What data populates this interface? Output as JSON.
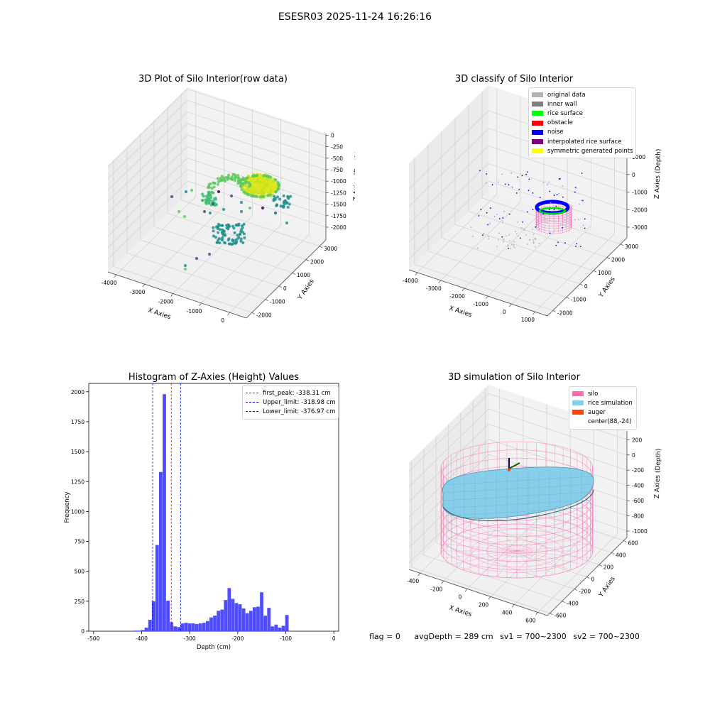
{
  "figure": {
    "suptitle": "ESESR03 2025-11-24 16:26:16"
  },
  "panels": {
    "raw": {
      "title": "3D Plot of Silo Interior(row data)",
      "xlabel": "X Axies",
      "ylabel": "Y Axies",
      "zlabel": "Z Axies (Depth)",
      "xticks": [
        "-4000",
        "-3000",
        "-2000",
        "-1000",
        "0"
      ],
      "yticks": [
        "-2000",
        "-1000",
        "0",
        "1000",
        "2000",
        "3000"
      ],
      "zticks": [
        "0",
        "-250",
        "-500",
        "-750",
        "-1000",
        "-1250",
        "-1500",
        "-1750",
        "-2000"
      ]
    },
    "classify": {
      "title": "3D classify of Silo Interior",
      "xlabel": "X Axies",
      "ylabel": "Y Axies",
      "zlabel": "Z Axies (Depth)",
      "xticks": [
        "-4000",
        "-3000",
        "-2000",
        "-1000",
        "0",
        "1000"
      ],
      "yticks": [
        "-2000",
        "-1000",
        "0",
        "1000",
        "2000",
        "3000"
      ],
      "zticks": [
        "1000",
        "0",
        "-1000",
        "-2000",
        "-3000"
      ],
      "legend": [
        {
          "label": "original data",
          "color": "#b3b3b3"
        },
        {
          "label": "inner wall",
          "color": "#808080"
        },
        {
          "label": "rice surface",
          "color": "#00ff00"
        },
        {
          "label": "obstacle",
          "color": "#ff0000"
        },
        {
          "label": "noise",
          "color": "#0000ff"
        },
        {
          "label": "interpolated rice surface",
          "color": "#800080"
        },
        {
          "label": "symmetric generated points",
          "color": "#ffff00"
        }
      ]
    },
    "simulation": {
      "title": "3D simulation of Silo Interior",
      "xlabel": "X Axies",
      "ylabel": "Y Axies",
      "zlabel": "Z Axies (Depth)",
      "xticks": [
        "-400",
        "-200",
        "0",
        "200",
        "400",
        "600"
      ],
      "yticks": [
        "-600",
        "-400",
        "-200",
        "0",
        "200",
        "400",
        "600"
      ],
      "zticks": [
        "200",
        "0",
        "-200",
        "-400",
        "-600",
        "-800",
        "-1000"
      ],
      "legend": [
        {
          "label": "silo",
          "color": "#ff69b4"
        },
        {
          "label": "rice simulation",
          "color": "#87ceeb"
        },
        {
          "label": "auger",
          "color": "#ff4500"
        },
        {
          "label": "center(88,-24)",
          "color": ""
        }
      ]
    }
  },
  "status": {
    "flag": "flag = 0",
    "avg_depth": "avgDepth = 289 cm",
    "sv1": "sv1 = 700~2300",
    "sv2": "sv2 = 700~2300"
  },
  "chart_data": [
    {
      "type": "scatter",
      "title": "3D Plot of Silo Interior(row data)",
      "xlabel": "X Axies",
      "ylabel": "Y Axies",
      "zlabel": "Z Axies (Depth)",
      "xlim": [
        -4300,
        500
      ],
      "ylim": [
        -2500,
        3500
      ],
      "zlim": [
        -2100,
        100
      ],
      "colormap": "viridis (by depth)"
    },
    {
      "type": "scatter",
      "title": "3D classify of Silo Interior",
      "xlabel": "X Axies",
      "ylabel": "Y Axies",
      "zlabel": "Z Axies (Depth)",
      "xlim": [
        -4300,
        1100
      ],
      "ylim": [
        -2500,
        3100
      ],
      "zlim": [
        -3600,
        1100
      ],
      "series": [
        {
          "name": "original data",
          "color": "#b3b3b3"
        },
        {
          "name": "inner wall",
          "color": "#808080"
        },
        {
          "name": "rice surface",
          "color": "#00ff00"
        },
        {
          "name": "obstacle",
          "color": "#ff0000"
        },
        {
          "name": "noise",
          "color": "#0000ff"
        },
        {
          "name": "interpolated rice surface",
          "color": "#800080"
        },
        {
          "name": "symmetric generated points",
          "color": "#ffff00"
        }
      ]
    },
    {
      "type": "bar",
      "title": "Histogram of Z-Axies (Height) Values",
      "xlabel": "Depth (cm)",
      "ylabel": "Frequency",
      "xlim": [
        -510,
        10
      ],
      "ylim": [
        0,
        2070
      ],
      "xticks": [
        -500,
        -400,
        -300,
        -200,
        -100,
        0
      ],
      "yticks": [
        0,
        250,
        500,
        750,
        1000,
        1250,
        1500,
        1750,
        2000
      ],
      "bar_color": "#4d4dff",
      "bin_width": 7.5,
      "bins": [
        {
          "x": -412.5,
          "y": 5
        },
        {
          "x": -405,
          "y": 5
        },
        {
          "x": -397.5,
          "y": 10
        },
        {
          "x": -390,
          "y": 30
        },
        {
          "x": -382.5,
          "y": 95
        },
        {
          "x": -375,
          "y": 250
        },
        {
          "x": -367.5,
          "y": 720
        },
        {
          "x": -360,
          "y": 1330
        },
        {
          "x": -352.5,
          "y": 1980
        },
        {
          "x": -345,
          "y": 255
        },
        {
          "x": -337.5,
          "y": 75
        },
        {
          "x": -330,
          "y": 40
        },
        {
          "x": -322.5,
          "y": 35
        },
        {
          "x": -315,
          "y": 65
        },
        {
          "x": -307.5,
          "y": 70
        },
        {
          "x": -300,
          "y": 65
        },
        {
          "x": -292.5,
          "y": 65
        },
        {
          "x": -285,
          "y": 60
        },
        {
          "x": -277.5,
          "y": 65
        },
        {
          "x": -270,
          "y": 70
        },
        {
          "x": -262.5,
          "y": 85
        },
        {
          "x": -255,
          "y": 115
        },
        {
          "x": -247.5,
          "y": 130
        },
        {
          "x": -240,
          "y": 170
        },
        {
          "x": -232.5,
          "y": 180
        },
        {
          "x": -225,
          "y": 260
        },
        {
          "x": -217.5,
          "y": 360
        },
        {
          "x": -210,
          "y": 270
        },
        {
          "x": -202.5,
          "y": 235
        },
        {
          "x": -195,
          "y": 225
        },
        {
          "x": -187.5,
          "y": 190
        },
        {
          "x": -180,
          "y": 150
        },
        {
          "x": -172.5,
          "y": 170
        },
        {
          "x": -165,
          "y": 200
        },
        {
          "x": -157.5,
          "y": 205
        },
        {
          "x": -150,
          "y": 325
        },
        {
          "x": -142.5,
          "y": 130
        },
        {
          "x": -135,
          "y": 195
        },
        {
          "x": -127.5,
          "y": 40
        },
        {
          "x": -120,
          "y": 55
        },
        {
          "x": -112.5,
          "y": 30
        },
        {
          "x": -105,
          "y": 45
        },
        {
          "x": -97.5,
          "y": 135
        }
      ],
      "title_display": "Histogram of Z-Axies (Height) Values",
      "reference_lines": [
        {
          "name": "first_peak: -338.31 cm",
          "x": -338.31,
          "color": "#ff0000"
        },
        {
          "name": "Upper_limit: -318.98 cm",
          "x": -318.98,
          "color": "#0000ff"
        },
        {
          "name": "Lower_limit: -376.97 cm",
          "x": -376.97,
          "color": "#0000ff"
        }
      ]
    },
    {
      "type": "scatter",
      "title": "3D simulation of Silo Interior",
      "xlabel": "X Axies",
      "ylabel": "Y Axies",
      "zlabel": "Z Axies (Depth)",
      "xlim": [
        -500,
        700
      ],
      "ylim": [
        -700,
        700
      ],
      "zlim": [
        -1100,
        300
      ],
      "series": [
        {
          "name": "silo",
          "color": "#ff69b4"
        },
        {
          "name": "rice simulation",
          "color": "#87ceeb"
        },
        {
          "name": "auger",
          "color": "#ff4500"
        },
        {
          "name": "center(88,-24)",
          "color": ""
        }
      ]
    }
  ]
}
